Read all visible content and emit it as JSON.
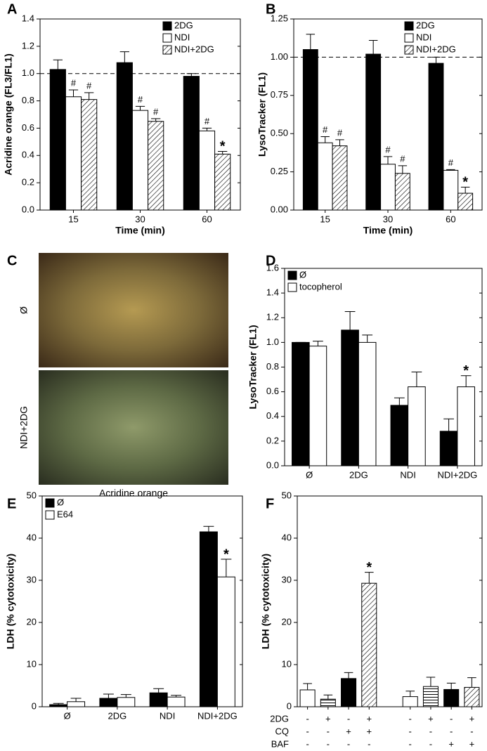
{
  "chart_data": [
    {
      "type": "bar",
      "panel_label": "A",
      "ylabel": "Acridine orange (FL3/FL1)",
      "xlabel": "Time (min)",
      "categories": [
        "15",
        "30",
        "60"
      ],
      "series": [
        {
          "name": "2DG",
          "style": "solid",
          "values": [
            1.03,
            1.08,
            0.98
          ],
          "errors": [
            0.07,
            0.08,
            0.02
          ],
          "annotations": [
            null,
            null,
            null
          ]
        },
        {
          "name": "NDI",
          "style": "open",
          "values": [
            0.83,
            0.73,
            0.58
          ],
          "errors": [
            0.05,
            0.03,
            0.02
          ],
          "annotations": [
            "#",
            "#",
            "#"
          ]
        },
        {
          "name": "NDI+2DG",
          "style": "hatch",
          "values": [
            0.81,
            0.65,
            0.41
          ],
          "errors": [
            0.05,
            0.02,
            0.02
          ],
          "annotations": [
            "#",
            "#",
            "*"
          ]
        }
      ],
      "ylim": [
        0,
        1.4
      ],
      "yticks": [
        {
          "value": 0,
          "label": "0.0"
        },
        0.2,
        0.4,
        0.6,
        0.8,
        {
          "value": 1,
          "label": "1.0"
        },
        1.2,
        1.4
      ],
      "ref_line": 1,
      "legend": "upper right"
    },
    {
      "type": "bar",
      "panel_label": "B",
      "ylabel": "LysoTracker (FL1)",
      "xlabel": "Time (min)",
      "categories": [
        "15",
        "30",
        "60"
      ],
      "series": [
        {
          "name": "2DG",
          "style": "solid",
          "values": [
            1.05,
            1.02,
            0.96
          ],
          "errors": [
            0.1,
            0.09,
            0.04
          ],
          "annotations": [
            null,
            null,
            null
          ]
        },
        {
          "name": "NDI",
          "style": "open",
          "values": [
            0.44,
            0.3,
            0.26
          ],
          "errors": [
            0.04,
            0.05,
            0.005
          ],
          "annotations": [
            "#",
            "#",
            "#"
          ]
        },
        {
          "name": "NDI+2DG",
          "style": "hatch",
          "values": [
            0.42,
            0.24,
            0.11
          ],
          "errors": [
            0.04,
            0.05,
            0.04
          ],
          "annotations": [
            "#",
            "#",
            "*"
          ]
        }
      ],
      "ylim": [
        0,
        1.25
      ],
      "yticks": [
        {
          "value": 0,
          "label": "0.00"
        },
        0.25,
        {
          "value": 0.5,
          "label": "0.50"
        },
        0.75,
        {
          "value": 1,
          "label": "1.00"
        },
        1.25
      ],
      "ref_line": 1,
      "legend": "upper right"
    },
    {
      "type": "image",
      "panel_label": "C",
      "row_labels": [
        "Ø",
        "NDI+2DG"
      ],
      "caption": "Acridine orange"
    },
    {
      "type": "bar",
      "panel_label": "D",
      "ylabel": "LysoTracker (FL1)",
      "categories": [
        "Ø",
        "2DG",
        "NDI",
        "NDI+2DG"
      ],
      "series": [
        {
          "name": "Ø",
          "style": "solid",
          "values": [
            1.0,
            1.1,
            0.49,
            0.28
          ],
          "errors": [
            0.0,
            0.15,
            0.06,
            0.1
          ],
          "annotations": [
            null,
            null,
            null,
            null
          ]
        },
        {
          "name": "tocopherol",
          "style": "open",
          "values": [
            0.97,
            1.0,
            0.64,
            0.64
          ],
          "errors": [
            0.04,
            0.06,
            0.12,
            0.09
          ],
          "annotations": [
            null,
            null,
            null,
            "*"
          ]
        }
      ],
      "ylim": [
        0,
        1.6
      ],
      "yticks": [
        {
          "value": 0,
          "label": "0.0"
        },
        0.2,
        0.4,
        0.6,
        0.8,
        {
          "value": 1,
          "label": "1.0"
        },
        1.2,
        1.4,
        1.6
      ],
      "legend": "upper left"
    },
    {
      "type": "bar",
      "panel_label": "E",
      "ylabel": "LDH (% cytotoxicity)",
      "categories": [
        "Ø",
        "2DG",
        "NDI",
        "NDI+2DG"
      ],
      "series": [
        {
          "name": "Ø",
          "style": "solid",
          "values": [
            0.5,
            2.0,
            3.3,
            41.5
          ],
          "errors": [
            0.3,
            1.0,
            1.0,
            1.3
          ],
          "annotations": [
            null,
            null,
            null,
            null
          ]
        },
        {
          "name": "E64",
          "style": "open",
          "values": [
            1.2,
            2.2,
            2.3,
            30.8
          ],
          "errors": [
            0.8,
            0.7,
            0.4,
            4.2
          ],
          "annotations": [
            null,
            null,
            null,
            "*"
          ]
        }
      ],
      "ylim": [
        0,
        50
      ],
      "yticks": [
        0,
        10,
        20,
        30,
        40,
        50
      ],
      "legend": "upper left"
    },
    {
      "type": "bar",
      "panel_label": "F",
      "ylabel": "LDH (% cytotoxicity)",
      "categories": [
        null,
        null,
        null,
        null,
        null,
        null,
        null,
        null
      ],
      "values": [
        4.0,
        1.8,
        6.7,
        29.3,
        2.4,
        4.8,
        4.1,
        4.6
      ],
      "errors": [
        1.5,
        1.0,
        1.4,
        2.6,
        1.3,
        2.2,
        1.5,
        2.3
      ],
      "styles": [
        "open",
        "hlines",
        "solid",
        "hatch",
        "open",
        "hlines",
        "solid",
        "hatch"
      ],
      "annotations": [
        null,
        null,
        null,
        "*",
        null,
        null,
        null,
        null
      ],
      "conditions": [
        {
          "name": "2DG",
          "signs": [
            "-",
            "+",
            "-",
            "+",
            "-",
            "+",
            "-",
            "+"
          ]
        },
        {
          "name": "CQ",
          "signs": [
            "-",
            "-",
            "+",
            "+",
            "-",
            "-",
            "-",
            "-"
          ]
        },
        {
          "name": "BAF",
          "signs": [
            "-",
            "-",
            "-",
            "-",
            "-",
            "-",
            "+",
            "+"
          ]
        }
      ],
      "ylim": [
        0,
        50
      ],
      "yticks": [
        0,
        10,
        20,
        30,
        40,
        50
      ]
    }
  ]
}
